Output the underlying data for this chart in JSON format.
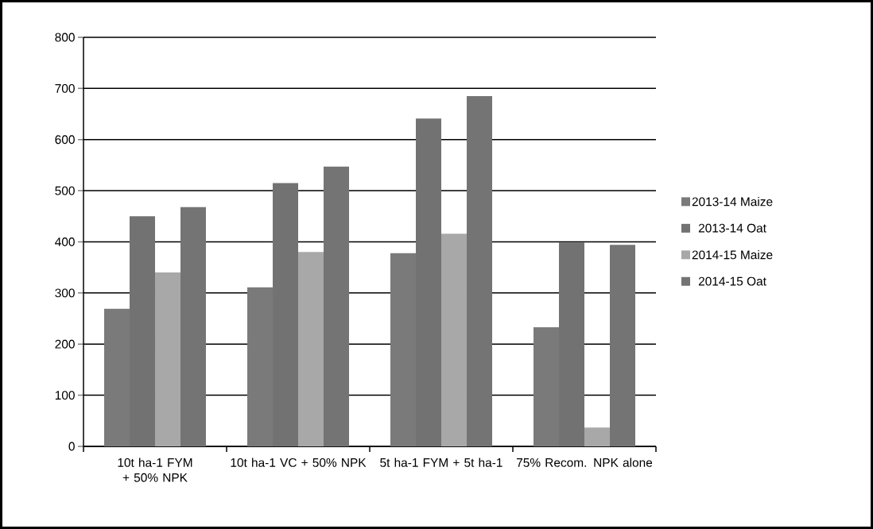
{
  "chart_data": {
    "type": "bar",
    "categories": [
      "10t ha-1 FYM + 50% NPK",
      "10t ha-1 VC + 50% NPK",
      "5t ha-1 FYM + 5t ha-1",
      "75% Recom. NPK alone"
    ],
    "series": [
      {
        "name": "2013-14 Maize",
        "color": "#7a7a7a",
        "values": [
          269,
          311,
          378,
          233
        ]
      },
      {
        "name": "2013-14 Oat",
        "color": "#727272",
        "values": [
          450,
          515,
          641,
          399
        ]
      },
      {
        "name": "2014-15 Maize",
        "color": "#a8a8a8",
        "values": [
          340,
          380,
          416,
          37
        ]
      },
      {
        "name": "2014-15 Oat",
        "color": "#747474",
        "values": [
          468,
          547,
          685,
          394
        ]
      }
    ],
    "ylim": [
      0,
      800
    ],
    "yticks": [
      0,
      100,
      200,
      300,
      400,
      500,
      600,
      700,
      800
    ],
    "grid": "y",
    "legend": "right"
  }
}
